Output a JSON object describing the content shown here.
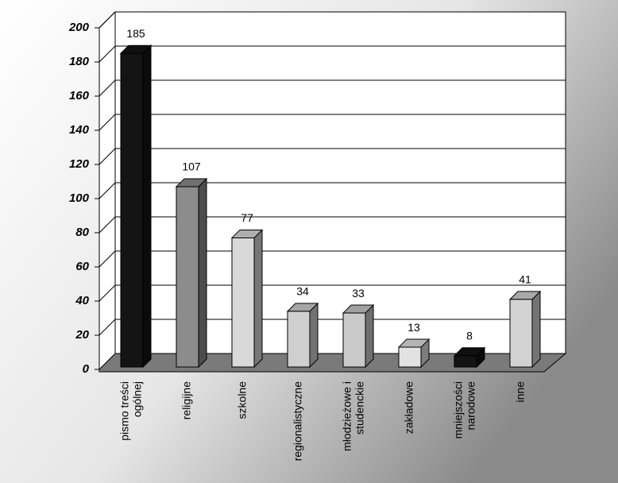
{
  "chart_data": {
    "type": "bar3d",
    "categories": [
      [
        "pismo treści",
        "ogólnej"
      ],
      [
        "religijne"
      ],
      [
        "szkolne"
      ],
      [
        "regionalistyczne"
      ],
      [
        "młodzieżowe i",
        "studenckie"
      ],
      [
        "zakładowe"
      ],
      [
        "mniejszości",
        "narodowe"
      ],
      [
        "inne"
      ]
    ],
    "values": [
      185,
      107,
      77,
      34,
      33,
      13,
      8,
      41
    ],
    "colors": [
      "#141414",
      "#8c8c8c",
      "#d9d9d9",
      "#cfcfcf",
      "#c9c9c9",
      "#e2e2e2",
      "#141414",
      "#d2d2d2"
    ],
    "ylim": [
      0,
      200
    ],
    "yticks": [
      0,
      20,
      40,
      60,
      80,
      100,
      120,
      140,
      160,
      180,
      200
    ],
    "grid": true
  }
}
